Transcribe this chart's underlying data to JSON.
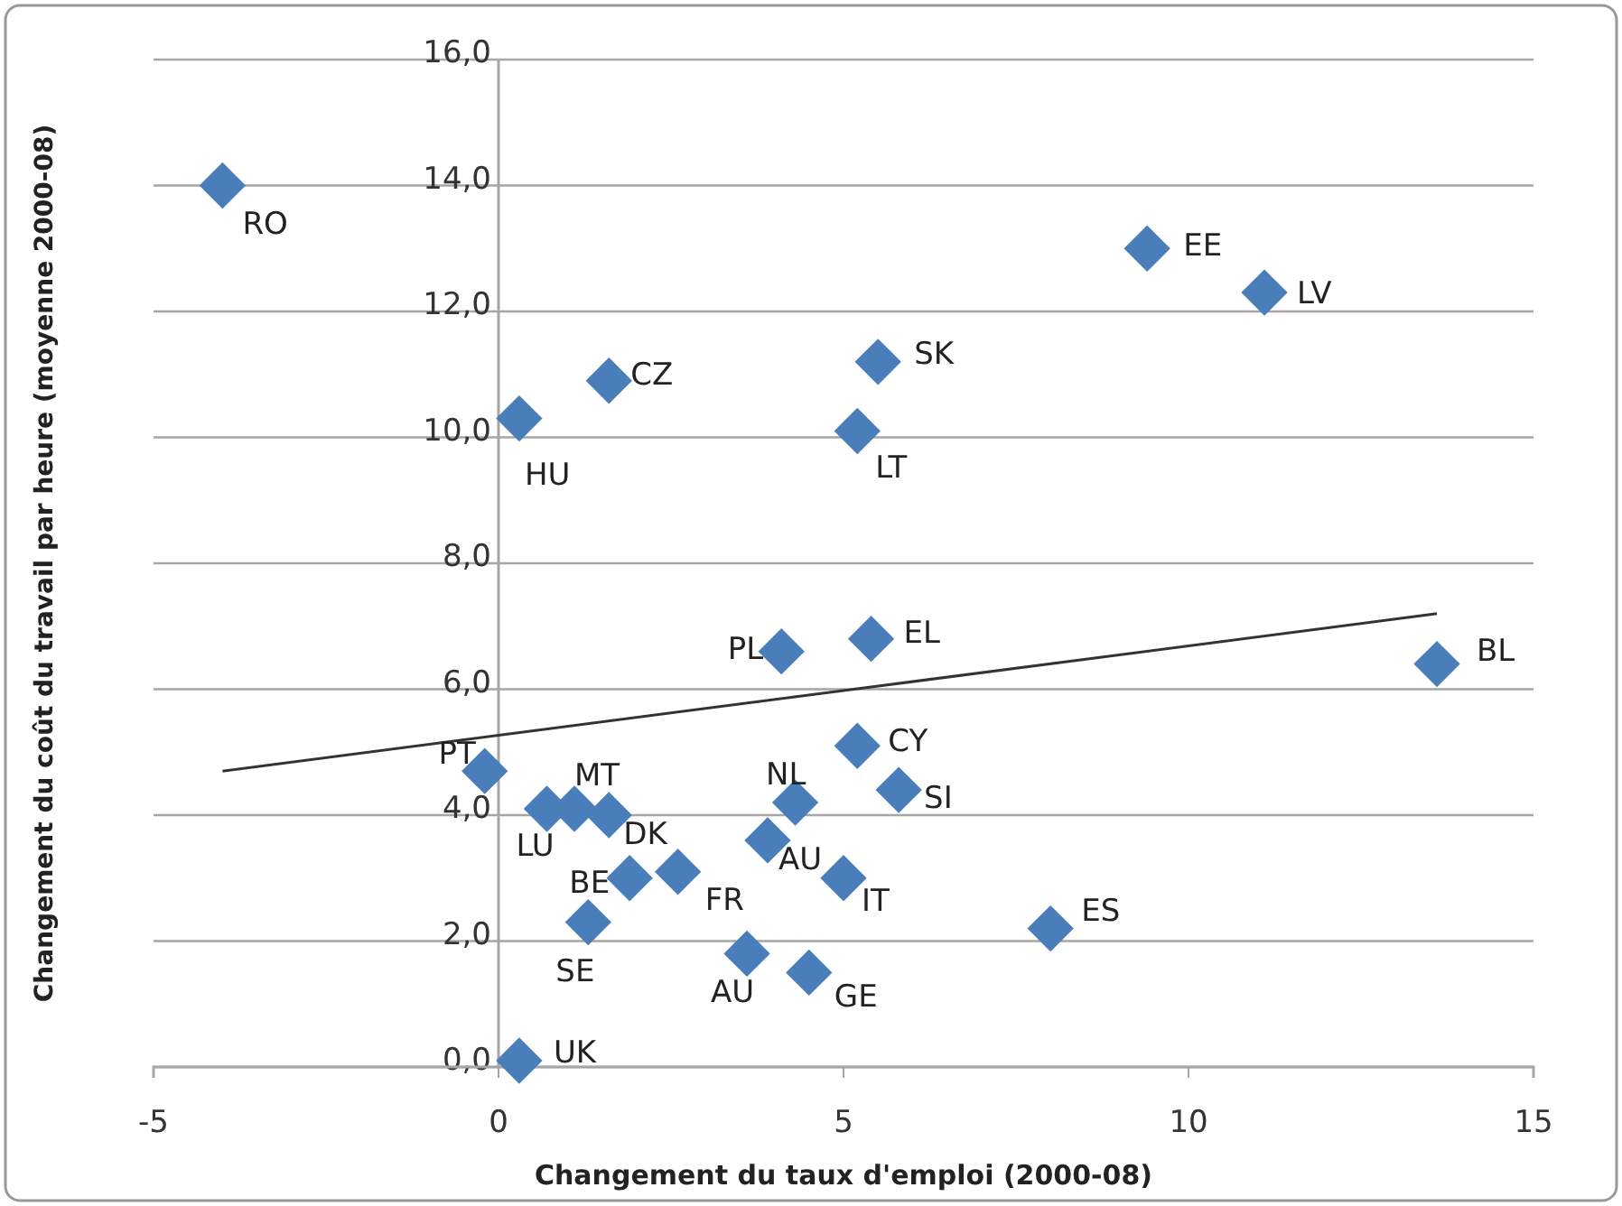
{
  "chart_data": {
    "type": "scatter",
    "xlabel": "Changement du taux d'emploi (2000-08)",
    "ylabel": "Changement du coût du travail par heure (moyenne 2000-08)",
    "xlim": [
      -5,
      15
    ],
    "xticks": [
      -5,
      0,
      5,
      10,
      15
    ],
    "ylim": [
      0,
      16
    ],
    "yticks": [
      {
        "value": 0,
        "label": "0,0"
      },
      {
        "value": 2,
        "label": "2,0"
      },
      {
        "value": 4,
        "label": "4,0"
      },
      {
        "value": 6,
        "label": "6,0"
      },
      {
        "value": 8,
        "label": "8,0"
      },
      {
        "value": 10,
        "label": "10,0"
      },
      {
        "value": 12,
        "label": "12,0"
      },
      {
        "value": 14,
        "label": "14,0"
      },
      {
        "value": 16,
        "label": "16,0"
      }
    ],
    "grid": "y",
    "marker": "diamond",
    "series": [
      {
        "color": "#4a7ebb",
        "x": [
          -4.0,
          0.3,
          1.6,
          5.5,
          5.2,
          9.4,
          11.1,
          4.1,
          5.4,
          13.6,
          -0.2,
          0.7,
          1.1,
          1.6,
          1.9,
          2.6,
          1.3,
          4.3,
          3.9,
          5.2,
          5.8,
          5.0,
          8.0,
          3.6,
          4.5,
          0.3
        ],
        "values": [
          14.0,
          10.3,
          10.9,
          11.2,
          10.1,
          13.0,
          12.3,
          6.6,
          6.8,
          6.4,
          4.7,
          4.1,
          4.1,
          4.0,
          3.0,
          3.1,
          2.3,
          4.2,
          3.6,
          5.1,
          4.4,
          3.0,
          2.2,
          1.8,
          1.5,
          0.1
        ]
      },
      {
        "type": "line",
        "color": "#333333",
        "marker": "none",
        "line_style": "solid",
        "x": [
          -4.0,
          13.6
        ],
        "values": [
          4.7,
          7.2
        ]
      }
    ],
    "annotations": [
      {
        "text": "RO",
        "x": -4.0,
        "y": 14.0
      },
      {
        "text": "HU",
        "x": 0.3,
        "y": 10.3
      },
      {
        "text": "CZ",
        "x": 1.6,
        "y": 10.9
      },
      {
        "text": "SK",
        "x": 5.5,
        "y": 11.2
      },
      {
        "text": "LT",
        "x": 5.2,
        "y": 10.1
      },
      {
        "text": "EE",
        "x": 9.4,
        "y": 13.0
      },
      {
        "text": "LV",
        "x": 11.1,
        "y": 12.3
      },
      {
        "text": "PL",
        "x": 4.1,
        "y": 6.6
      },
      {
        "text": "EL",
        "x": 5.4,
        "y": 6.8
      },
      {
        "text": "BL",
        "x": 13.6,
        "y": 6.4
      },
      {
        "text": "PT",
        "x": -0.2,
        "y": 4.7
      },
      {
        "text": "LU",
        "x": 0.7,
        "y": 4.1
      },
      {
        "text": "MT",
        "x": 1.1,
        "y": 4.1
      },
      {
        "text": "DK",
        "x": 1.6,
        "y": 4.0
      },
      {
        "text": "BE",
        "x": 1.9,
        "y": 3.0
      },
      {
        "text": "FR",
        "x": 2.6,
        "y": 3.1
      },
      {
        "text": "SE",
        "x": 1.3,
        "y": 2.3
      },
      {
        "text": "NL",
        "x": 4.3,
        "y": 4.2
      },
      {
        "text": "AU",
        "x": 3.9,
        "y": 3.6
      },
      {
        "text": "CY",
        "x": 5.2,
        "y": 5.1
      },
      {
        "text": "SI",
        "x": 5.8,
        "y": 4.4
      },
      {
        "text": "IT",
        "x": 5.0,
        "y": 3.0
      },
      {
        "text": "ES",
        "x": 8.0,
        "y": 2.2
      },
      {
        "text": "AU",
        "x": 3.6,
        "y": 1.8
      },
      {
        "text": "GE",
        "x": 4.5,
        "y": 1.5
      },
      {
        "text": "UK",
        "x": 0.3,
        "y": 0.1
      }
    ]
  }
}
